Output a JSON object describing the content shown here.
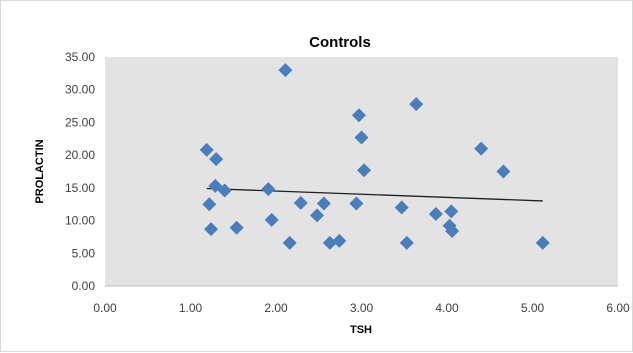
{
  "chart_data": {
    "type": "scatter",
    "title": "Controls",
    "xlabel": "TSH",
    "ylabel": "PROLACTIN",
    "xlim": [
      0,
      6
    ],
    "ylim": [
      0,
      35
    ],
    "x_ticks": [
      "0.00",
      "1.00",
      "2.00",
      "3.00",
      "4.00",
      "5.00",
      "6.00"
    ],
    "y_ticks": [
      "0.00",
      "5.00",
      "10.00",
      "15.00",
      "20.00",
      "25.00",
      "30.00",
      "35.00"
    ],
    "grid": false,
    "legend": "none",
    "colors": {
      "marker": "#4a7ebb",
      "plot_area": "#e3e3e3",
      "trendline": "#1f1f1f",
      "text": "#404040"
    },
    "series": [
      {
        "points": [
          [
            1.19,
            20.8
          ],
          [
            1.22,
            12.5
          ],
          [
            1.24,
            8.7
          ],
          [
            1.29,
            15.3
          ],
          [
            1.3,
            19.4
          ],
          [
            1.4,
            14.6
          ],
          [
            1.54,
            8.9
          ],
          [
            1.91,
            14.8
          ],
          [
            1.95,
            10.1
          ],
          [
            2.11,
            33.0
          ],
          [
            2.16,
            6.6
          ],
          [
            2.29,
            12.7
          ],
          [
            2.48,
            10.8
          ],
          [
            2.56,
            12.6
          ],
          [
            2.63,
            6.6
          ],
          [
            2.74,
            6.9
          ],
          [
            2.94,
            12.6
          ],
          [
            2.97,
            26.1
          ],
          [
            3.0,
            22.7
          ],
          [
            3.03,
            17.7
          ],
          [
            3.47,
            12.0
          ],
          [
            3.53,
            6.6
          ],
          [
            3.64,
            27.8
          ],
          [
            3.87,
            11.0
          ],
          [
            4.03,
            9.2
          ],
          [
            4.05,
            11.4
          ],
          [
            4.06,
            8.4
          ],
          [
            4.4,
            21.0
          ],
          [
            4.66,
            17.5
          ],
          [
            5.12,
            6.6
          ]
        ]
      }
    ],
    "trendline": {
      "type": "linear",
      "x": [
        1.19,
        5.12
      ],
      "y": [
        14.9,
        13.0
      ]
    }
  }
}
